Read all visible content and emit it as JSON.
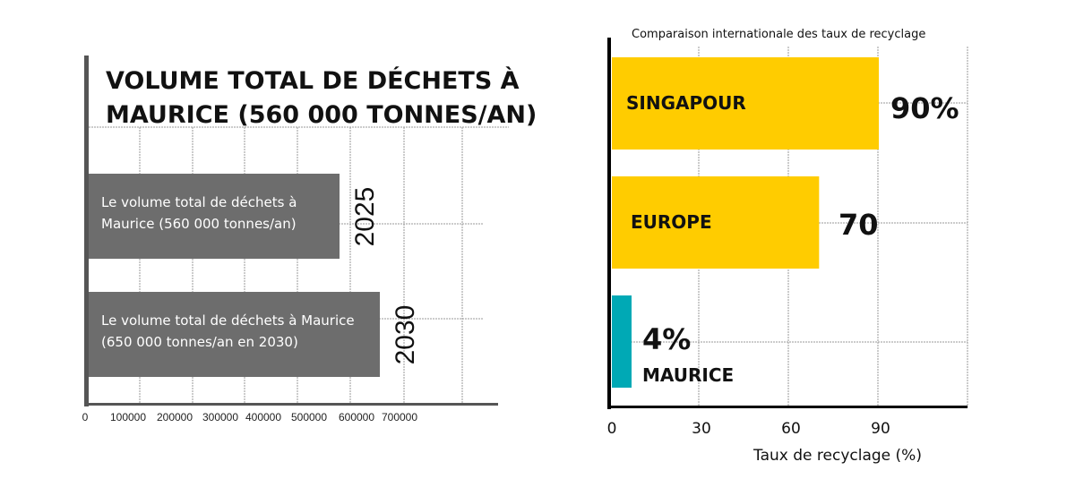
{
  "chart_data": [
    {
      "type": "bar",
      "orientation": "horizontal",
      "title_lines": [
        "VOLUME TOTAL DE DÉCHETS À",
        "MAURICE (560 000 TONNES/AN)"
      ],
      "categories": [
        "2025",
        "2030"
      ],
      "values": [
        560000,
        650000
      ],
      "bar_labels": [
        [
          "Le volume total de déchets à",
          "Maurice (560 000 tonnes/an)"
        ],
        [
          "Le volume total de déchets à Maurice",
          "(650 000 tonnes/an en 2030)"
        ]
      ],
      "xticks": [
        "0",
        "100000",
        "200000",
        "300000",
        "400000",
        "500000",
        "600000",
        "700000"
      ],
      "xlim": [
        0,
        800000
      ],
      "grid": true,
      "colors": {
        "bar": "#6d6d6d",
        "axis": "#555555"
      }
    },
    {
      "type": "bar",
      "orientation": "horizontal",
      "title": "Comparaison internationale des taux de recyclage",
      "categories": [
        "SINGAPOUR",
        "EUROPE",
        "MAURICE"
      ],
      "values": [
        90,
        70,
        4
      ],
      "value_labels": [
        "90%",
        "70",
        "4%"
      ],
      "xticks": [
        "0",
        "30",
        "60",
        "90"
      ],
      "xlim": [
        0,
        120
      ],
      "xlabel": "Taux de recyclage (%)",
      "grid": true,
      "colors": {
        "SINGAPOUR": "#ffcc00",
        "EUROPE": "#ffcc00",
        "MAURICE": "#00a9b5",
        "axis": "#000000"
      }
    }
  ]
}
